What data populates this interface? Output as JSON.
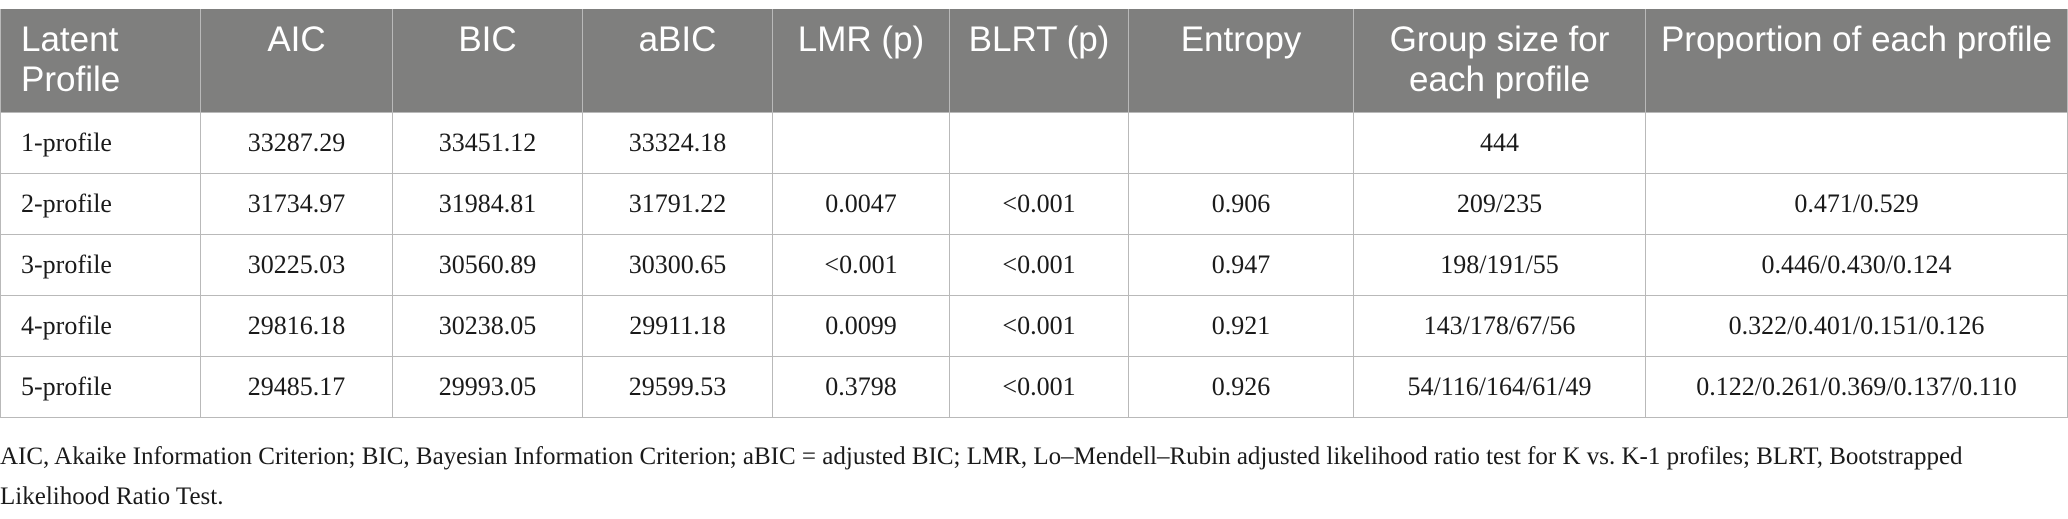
{
  "table": {
    "headers": [
      "Latent Profile",
      "AIC",
      "BIC",
      "aBIC",
      "LMR (p)",
      "BLRT (p)",
      "Entropy",
      "Group size for each profile",
      "Proportion of each profile"
    ],
    "rows": [
      [
        "1-profile",
        "33287.29",
        "33451.12",
        "33324.18",
        "",
        "",
        "",
        "444",
        ""
      ],
      [
        "2-profile",
        "31734.97",
        "31984.81",
        "31791.22",
        "0.0047",
        "<0.001",
        "0.906",
        "209/235",
        "0.471/0.529"
      ],
      [
        "3-profile",
        "30225.03",
        "30560.89",
        "30300.65",
        "<0.001",
        "<0.001",
        "0.947",
        "198/191/55",
        "0.446/0.430/0.124"
      ],
      [
        "4-profile",
        "29816.18",
        "30238.05",
        "29911.18",
        "0.0099",
        "<0.001",
        "0.921",
        "143/178/67/56",
        "0.322/0.401/0.151/0.126"
      ],
      [
        "5-profile",
        "29485.17",
        "29993.05",
        "29599.53",
        "0.3798",
        "<0.001",
        "0.926",
        "54/116/164/61/49",
        "0.122/0.261/0.369/0.137/0.110"
      ]
    ]
  },
  "footnote": "AIC, Akaike Information Criterion; BIC, Bayesian Information Criterion; aBIC = adjusted BIC; LMR, Lo–Mendell–Rubin adjusted likelihood ratio test for K vs. K-1 profiles; BLRT, Bootstrapped Likelihood Ratio Test."
}
